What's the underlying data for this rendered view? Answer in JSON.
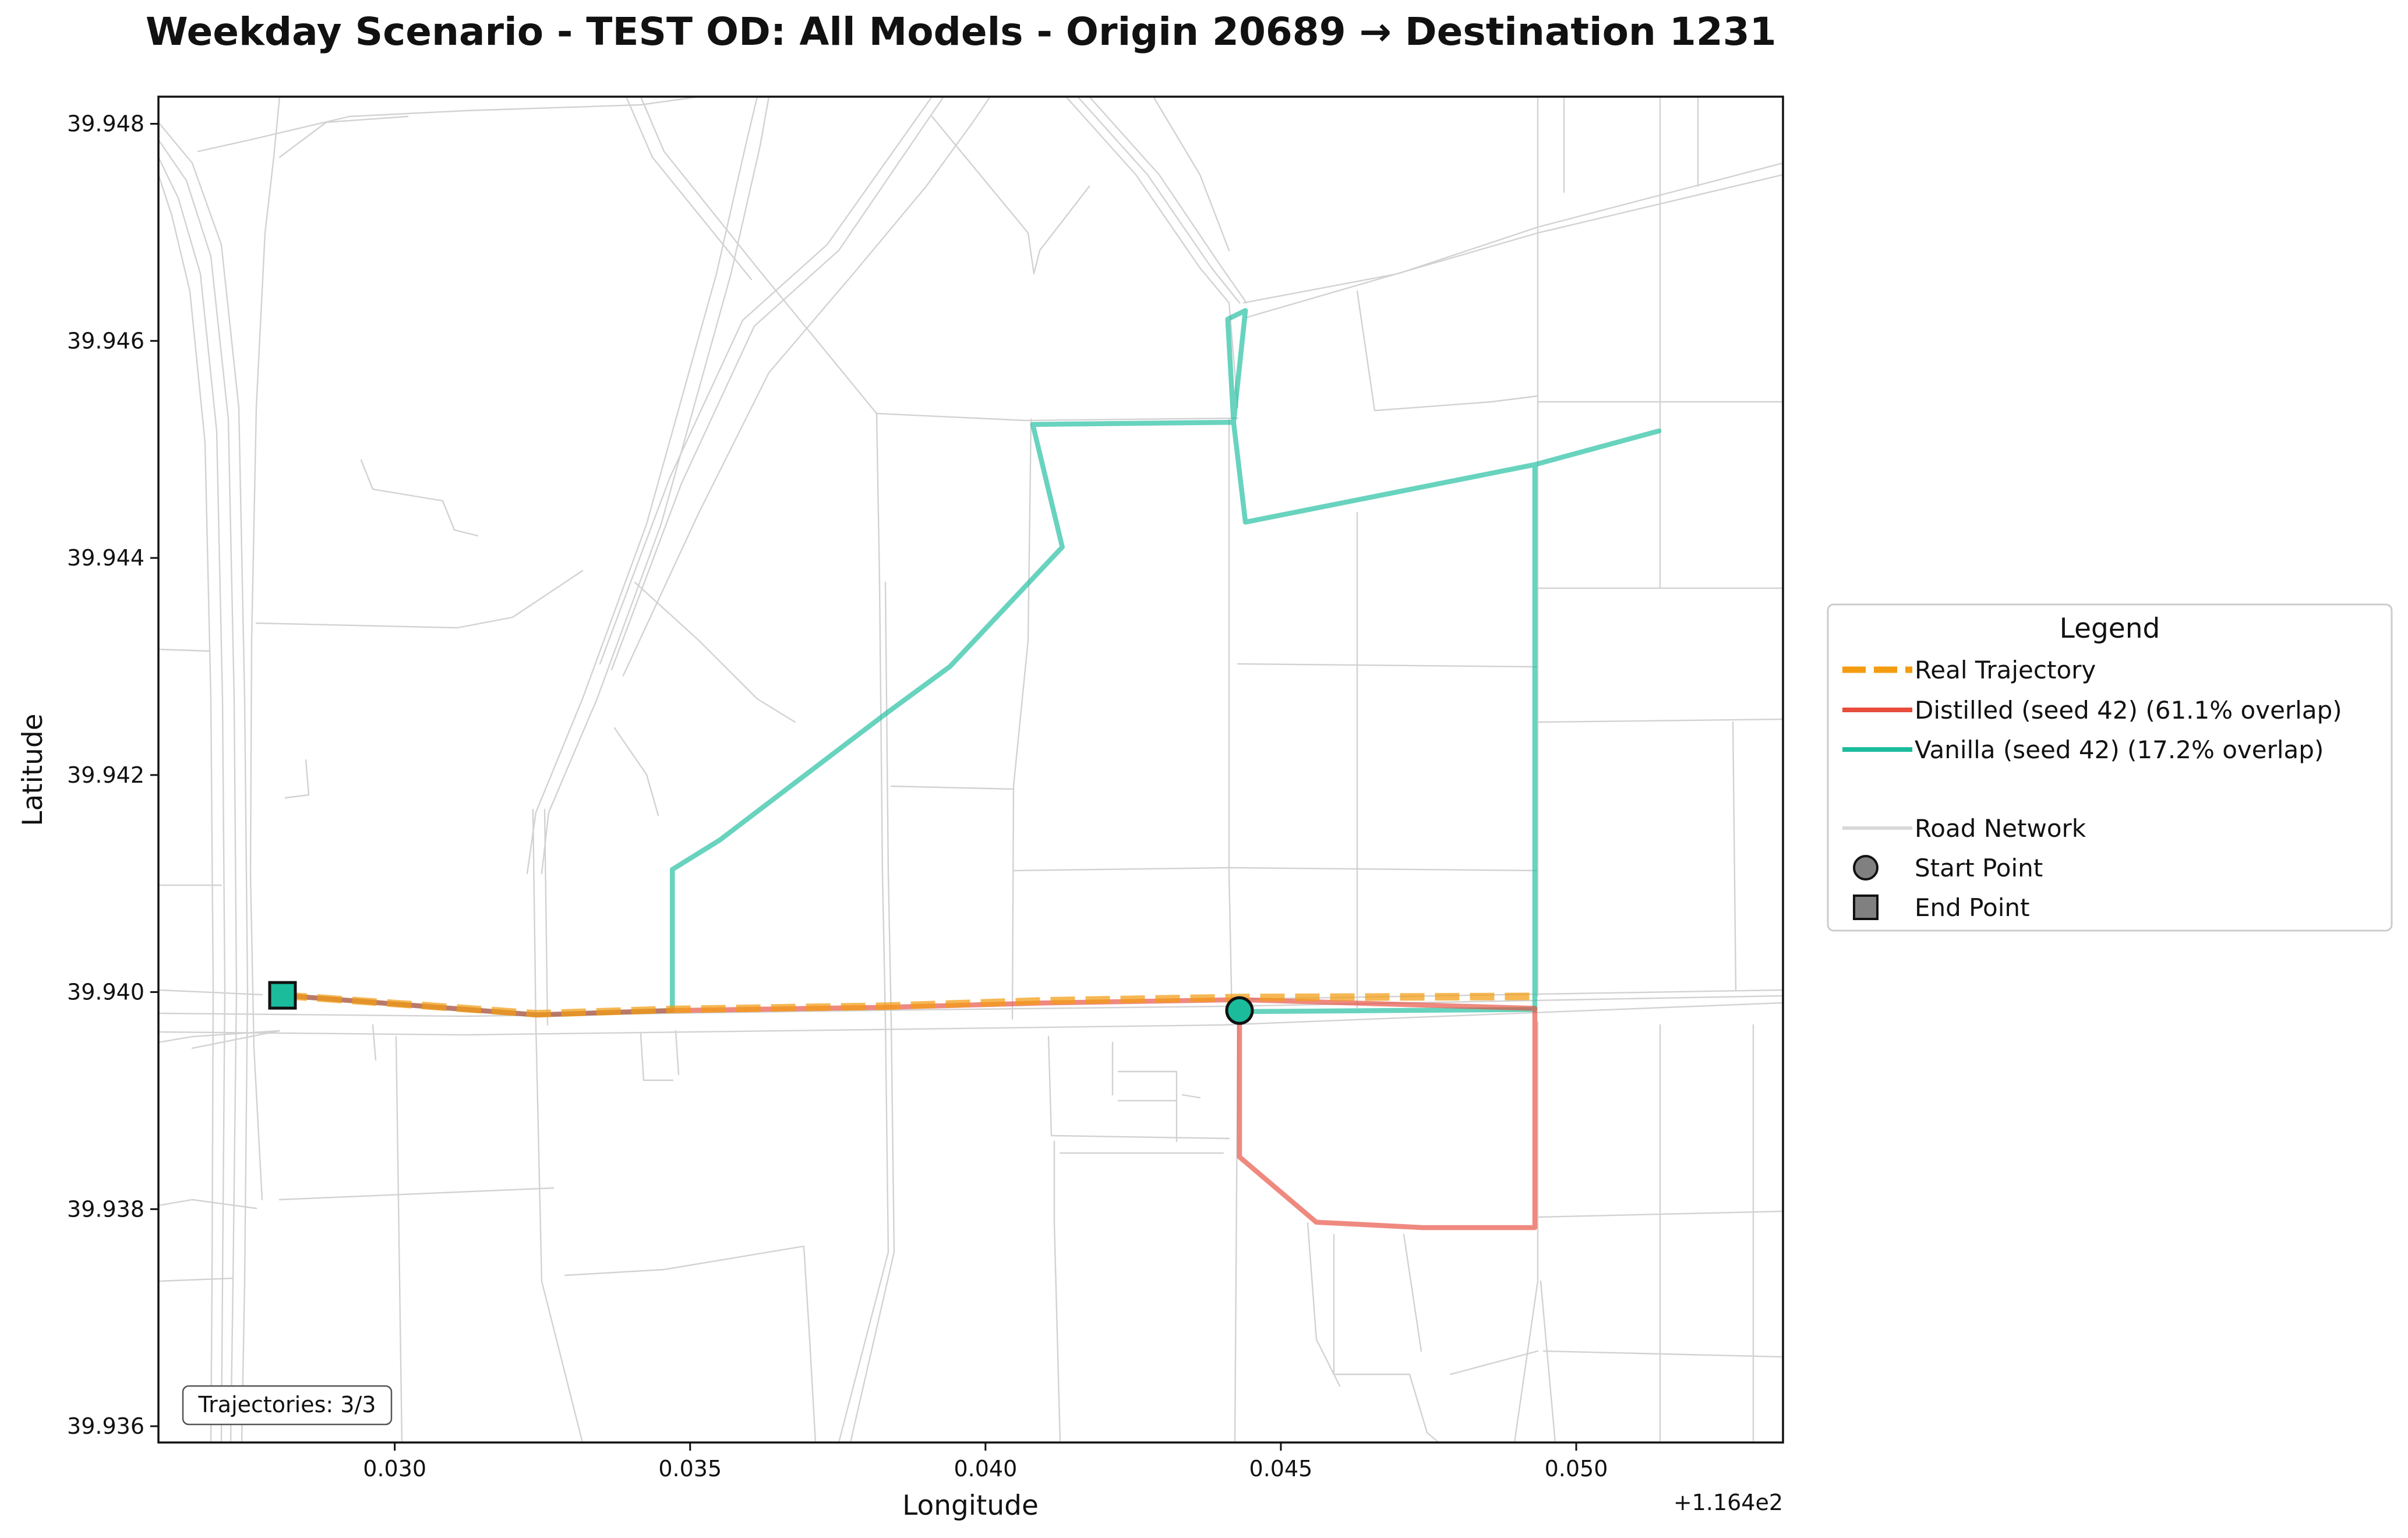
{
  "title": "Weekday Scenario - TEST OD: All Models - Origin 20689 → Destination 1231",
  "chart_data": {
    "type": "line",
    "title": "Weekday Scenario - TEST OD: All Models - Origin 20689 → Destination 1231",
    "xlabel": "Longitude",
    "ylabel": "Latitude",
    "x_offset_label": "+1.164e2",
    "xlim": [
      116.426,
      116.4535
    ],
    "ylim": [
      39.93585,
      39.94825
    ],
    "xticks": [
      116.43,
      116.435,
      116.44,
      116.445,
      116.45
    ],
    "xtick_labels": [
      "0.030",
      "0.035",
      "0.040",
      "0.045",
      "0.050"
    ],
    "yticks": [
      39.936,
      39.938,
      39.94,
      39.942,
      39.944,
      39.946,
      39.948
    ],
    "ytick_labels": [
      "39.936",
      "39.938",
      "39.940",
      "39.942",
      "39.944",
      "39.946",
      "39.948"
    ],
    "grid": false,
    "legend_placement": "outside-right",
    "annotation": "Trajectories: 3/3",
    "series": [
      {
        "name": "Real Trajectory",
        "color": "#F39C12",
        "style": "dashed",
        "x": [
          116.4281,
          116.4324,
          116.4347,
          116.4383,
          116.441,
          116.4443,
          116.4493
        ],
        "y": [
          39.93997,
          39.9398,
          39.93984,
          39.93987,
          39.93992,
          39.93995,
          39.93996
        ]
      },
      {
        "name": "Distilled (seed 42) (61.1% overlap)",
        "color": "#E74C3C",
        "style": "solid",
        "x": [
          116.4443,
          116.4443,
          116.4456,
          116.4474,
          116.4493,
          116.4493,
          116.4443,
          116.441,
          116.4383,
          116.4347,
          116.4324,
          116.4281
        ],
        "y": [
          39.93982,
          39.93848,
          39.93788,
          39.93783,
          39.93783,
          39.93985,
          39.93993,
          39.9399,
          39.93986,
          39.93983,
          39.93979,
          39.93997
        ]
      },
      {
        "name": "Vanilla (seed 42) (17.2% overlap)",
        "color": "#1ABC9C",
        "style": "solid",
        "x": [
          116.4281,
          116.4324,
          116.4347,
          116.4347,
          116.4355,
          116.4383,
          116.4394,
          116.4413,
          116.4408,
          116.4442,
          116.4444,
          116.4441,
          116.4442,
          116.4444,
          116.4493,
          116.4514,
          116.4493,
          116.4493,
          116.4443
        ],
        "y": [
          39.93997,
          39.93979,
          39.93983,
          39.94113,
          39.9414,
          39.94256,
          39.943,
          39.9441,
          39.94523,
          39.94525,
          39.94628,
          39.9462,
          39.94525,
          39.94433,
          39.94486,
          39.94517,
          39.94486,
          39.93984,
          39.93982
        ]
      }
    ],
    "markers": [
      {
        "label": "Start Point",
        "shape": "circle",
        "x": 116.4443,
        "y": 39.93983,
        "color": "#1ABC9C"
      },
      {
        "label": "End Point",
        "shape": "square",
        "x": 116.4281,
        "y": 39.93997,
        "color": "#1ABC9C"
      }
    ]
  },
  "legend": {
    "title": "Legend",
    "entries": [
      {
        "label": "Real Trajectory",
        "color": "#F39C12",
        "style": "dashed"
      },
      {
        "label": "Distilled (seed 42) (61.1% overlap)",
        "color": "#E74C3C",
        "style": "solid"
      },
      {
        "label": "Vanilla (seed 42) (17.2% overlap)",
        "color": "#1ABC9C",
        "style": "solid"
      },
      {
        "label": "Road Network",
        "color": "#d9d9d9",
        "style": "solid"
      },
      {
        "label": "Start Point",
        "color": "#808080",
        "style": "circle"
      },
      {
        "label": "End Point",
        "color": "#808080",
        "style": "square"
      }
    ]
  }
}
